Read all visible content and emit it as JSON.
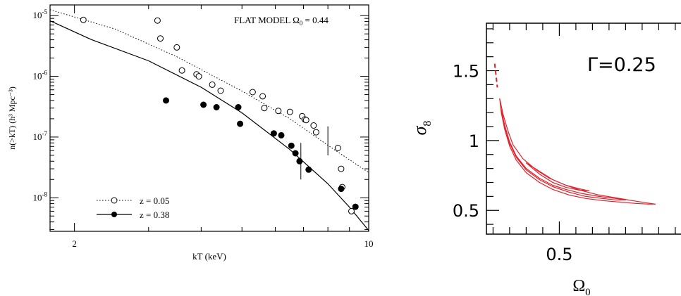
{
  "chart_data": [
    {
      "type": "scatter",
      "annotation": {
        "prefix": "FLAT MODEL ",
        "symbol": "Ω",
        "subscript": "0",
        "suffix": " = 0.44"
      },
      "xlabel": "kT (keV)",
      "ylabel": "n(>kT) (h³ Mpc⁻³)",
      "xscale": "log",
      "yscale": "log",
      "xlim": [
        1.75,
        10
      ],
      "ylim": [
        2.8e-09,
        1.5e-05
      ],
      "x_ticks": [
        {
          "value": 2,
          "label": "2"
        },
        {
          "value": 10,
          "label": "10"
        }
      ],
      "y_ticks": [
        {
          "value": 1e-05,
          "base": "10",
          "exp": "-5"
        },
        {
          "value": 1e-06,
          "base": "10",
          "exp": "-6"
        },
        {
          "value": 1e-07,
          "base": "10",
          "exp": "-7"
        },
        {
          "value": 1e-08,
          "base": "10",
          "exp": "-8"
        }
      ],
      "legend_position": "bottom-left",
      "series": [
        {
          "name": "z = 0.05",
          "marker": "open-circle",
          "line": "dotted",
          "x": [
            2.1,
            3.15,
            3.2,
            3.5,
            3.6,
            3.9,
            3.95,
            4.25,
            4.45,
            5.3,
            5.6,
            5.65,
            6.1,
            6.5,
            6.95,
            7.05,
            7.1,
            7.4,
            7.5,
            8.45,
            8.6,
            8.65,
            9.1
          ],
          "y": [
            8.5e-06,
            8.3e-06,
            4.2e-06,
            3e-06,
            1.25e-06,
            1.08e-06,
            1e-06,
            7.3e-07,
            5.8e-07,
            5.5e-07,
            4.7e-07,
            3e-07,
            2.7e-07,
            2.6e-07,
            2.2e-07,
            1.95e-07,
            1.9e-07,
            1.55e-07,
            1.2e-07,
            6.6e-08,
            3e-08,
            1.5e-08,
            6e-09
          ],
          "errorbars": [
            {
              "x": 8.0,
              "low": 5e-08,
              "high": 1.5e-07
            }
          ],
          "model_x": [
            1.75,
            2.5,
            3.5,
            5.0,
            6.5,
            8.0,
            10.0
          ],
          "model_y": [
            1.25e-05,
            6e-06,
            2.1e-06,
            5.7e-07,
            2e-07,
            7.3e-08,
            2.6e-08
          ]
        },
        {
          "name": "z = 0.38",
          "marker": "filled-circle",
          "line": "solid",
          "x": [
            3.3,
            4.05,
            4.35,
            4.9,
            4.95,
            5.95,
            6.2,
            6.55,
            6.7,
            6.85,
            7.2,
            8.6,
            9.3
          ],
          "y": [
            4e-07,
            3.4e-07,
            3.1e-07,
            3.1e-07,
            1.65e-07,
            1.15e-07,
            1.07e-07,
            7.2e-08,
            5.4e-08,
            4e-08,
            2.9e-08,
            1.4e-08,
            7.1e-09
          ],
          "errorbars": [
            {
              "x": 6.9,
              "low": 2e-08,
              "high": 8e-08
            }
          ],
          "model_x": [
            1.75,
            2.2,
            3.0,
            4.0,
            5.0,
            6.5,
            8.0,
            9.0,
            10.0
          ],
          "model_y": [
            8.2e-06,
            4e-06,
            1.8e-06,
            6.6e-07,
            2.5e-07,
            6.2e-08,
            1.7e-08,
            7e-09,
            2.9e-09
          ]
        }
      ]
    },
    {
      "type": "line",
      "annotation": "Γ=0.25",
      "xlabel": {
        "symbol": "Ω",
        "subscript": "0"
      },
      "ylabel": {
        "symbol": "σ",
        "subscript": "8"
      },
      "xlim": [
        0.28,
        0.88
      ],
      "ylim": [
        0.33,
        1.84
      ],
      "x_ticks": [
        {
          "value": 0.5,
          "label": "0.5"
        }
      ],
      "y_ticks": [
        {
          "value": 0.5,
          "label": "0.5"
        },
        {
          "value": 1.0,
          "label": "1"
        },
        {
          "value": 1.5,
          "label": "1.5"
        }
      ],
      "contour_color": "#e0202a",
      "contours": [
        {
          "x": [
            0.32,
            0.325,
            0.335,
            0.35,
            0.37,
            0.4,
            0.44,
            0.48,
            0.53,
            0.58,
            0.63,
            0.68,
            0.73,
            0.77,
            0.79,
            0.76,
            0.72,
            0.67,
            0.62,
            0.57,
            0.52,
            0.47,
            0.43,
            0.39,
            0.36,
            0.345,
            0.33,
            0.32
          ],
          "y": [
            1.3,
            1.2,
            1.08,
            0.96,
            0.86,
            0.77,
            0.7,
            0.65,
            0.61,
            0.585,
            0.57,
            0.56,
            0.55,
            0.545,
            0.545,
            0.555,
            0.57,
            0.59,
            0.61,
            0.64,
            0.68,
            0.73,
            0.79,
            0.87,
            0.97,
            1.07,
            1.19,
            1.3
          ]
        },
        {
          "x": [
            0.325,
            0.335,
            0.35,
            0.37,
            0.4,
            0.44,
            0.48,
            0.53,
            0.58,
            0.63,
            0.67,
            0.7,
            0.67,
            0.62,
            0.57,
            0.52,
            0.48,
            0.44,
            0.4,
            0.37,
            0.35,
            0.335,
            0.325
          ],
          "y": [
            1.22,
            1.1,
            0.98,
            0.88,
            0.79,
            0.72,
            0.67,
            0.63,
            0.6,
            0.585,
            0.575,
            0.575,
            0.585,
            0.6,
            0.62,
            0.65,
            0.68,
            0.73,
            0.8,
            0.89,
            0.99,
            1.11,
            1.22
          ]
        },
        {
          "x": [
            0.4,
            0.44,
            0.48,
            0.52,
            0.56,
            0.59,
            0.56,
            0.52,
            0.48,
            0.44,
            0.4
          ],
          "y": [
            0.84,
            0.76,
            0.7,
            0.665,
            0.645,
            0.64,
            0.655,
            0.68,
            0.72,
            0.78,
            0.84
          ]
        }
      ],
      "dash_segment": {
        "x": [
          0.305,
          0.313
        ],
        "y": [
          1.55,
          1.38
        ]
      }
    }
  ]
}
